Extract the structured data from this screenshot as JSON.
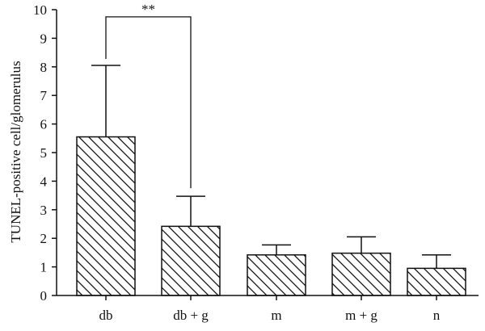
{
  "chart_data": {
    "type": "bar",
    "categories": [
      "db",
      "db + g",
      "m",
      "m + g",
      "n"
    ],
    "values": [
      5.55,
      2.42,
      1.42,
      1.48,
      0.95
    ],
    "error_upper": [
      8.05,
      3.47,
      1.77,
      2.05,
      1.42
    ],
    "ylabel": "TUNEL-positive cell/glomerulus",
    "xlabel": "",
    "ylim": [
      0,
      10
    ],
    "yticks": [
      0,
      1,
      2,
      3,
      4,
      5,
      6,
      7,
      8,
      9,
      10
    ],
    "bar_fill": "diagonal-hatch",
    "grid": false,
    "legend": "none",
    "significance": [
      {
        "from": "db",
        "to": "db + g",
        "label": "**",
        "y": 9.75
      }
    ]
  },
  "colors": {
    "stroke": "#111111",
    "background": "#ffffff"
  }
}
